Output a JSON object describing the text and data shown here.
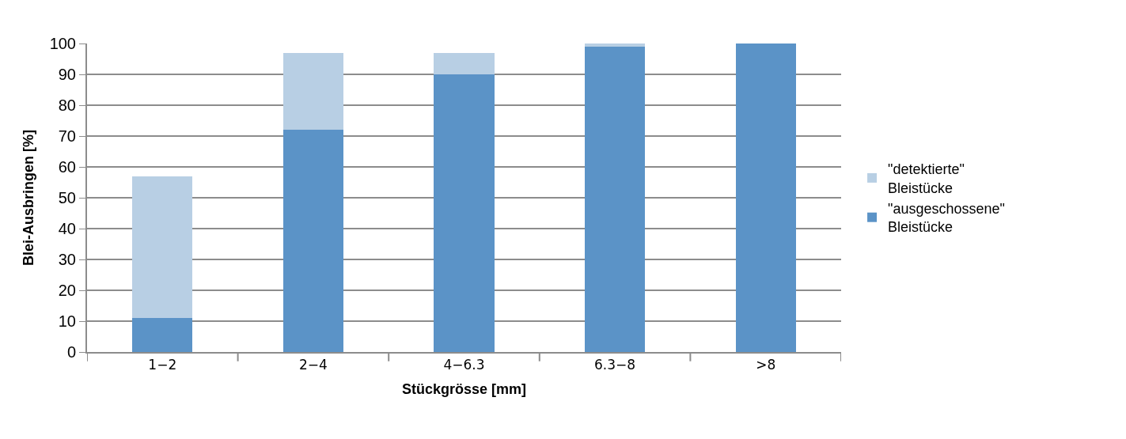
{
  "chart_data": {
    "type": "bar",
    "stacked": true,
    "xlabel": "Stückgrösse [mm]",
    "ylabel": "Blei-Ausbringen [%]",
    "categories": [
      "1−2",
      "2−4",
      "4−6.3",
      "6.3−8",
      ">8"
    ],
    "series": [
      {
        "name": "\"ausgeschossene\" Bleistücke",
        "color": "#5b93c7",
        "values": [
          11,
          72,
          90,
          99,
          100
        ]
      },
      {
        "name": "\"detektierte\" Bleistücke",
        "color": "#b8cfe4",
        "values": [
          46,
          25,
          7,
          1,
          0
        ]
      }
    ],
    "ylim": [
      0,
      100
    ],
    "yticks": [
      0,
      10,
      20,
      30,
      40,
      50,
      60,
      70,
      80,
      90,
      100
    ],
    "grid": "y",
    "legend": "right"
  }
}
